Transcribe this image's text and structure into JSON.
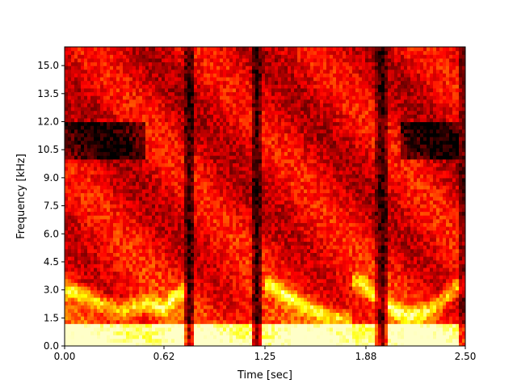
{
  "chart_data": {
    "type": "heatmap",
    "title": "",
    "xlabel": "Time [sec]",
    "ylabel": "Frequency [kHz]",
    "xlim": [
      0.0,
      2.5
    ],
    "ylim": [
      0.0,
      16.0
    ],
    "xticks": [
      0.0,
      0.62,
      1.25,
      1.88,
      2.5
    ],
    "xtick_labels": [
      "0.00",
      "0.62",
      "1.25",
      "1.88",
      "2.50"
    ],
    "yticks": [
      0.0,
      1.5,
      3.0,
      4.5,
      6.0,
      7.5,
      9.0,
      10.5,
      12.0,
      13.5,
      15.0
    ],
    "ytick_labels": [
      "0.0",
      "1.5",
      "3.0",
      "4.5",
      "6.0",
      "7.5",
      "9.0",
      "10.5",
      "12.0",
      "13.5",
      "15.0"
    ],
    "colormap": "hot",
    "grid": false,
    "description_of_values": "spectrogram intensity (0 = black, 1 = pale yellow)",
    "silence_gaps_sec": [
      0.78,
      1.2,
      1.98
    ],
    "formant_tracks_khz": [
      {
        "t": [
          0.05,
          0.2,
          0.35,
          0.5,
          0.62,
          0.72
        ],
        "f": [
          3.0,
          2.4,
          1.9,
          2.3,
          2.0,
          2.9
        ]
      },
      {
        "t": [
          1.3,
          1.45,
          1.6,
          1.75
        ],
        "f": [
          3.2,
          2.4,
          1.8,
          1.4
        ]
      },
      {
        "t": [
          1.85,
          2.0,
          2.15,
          2.3,
          2.45
        ],
        "f": [
          3.4,
          2.2,
          1.6,
          2.0,
          3.2
        ]
      }
    ],
    "colors": {
      "dark": "#0a0000",
      "mid": "#cc1a00",
      "bright": "#ffe040",
      "peak": "#ffffaa"
    }
  }
}
